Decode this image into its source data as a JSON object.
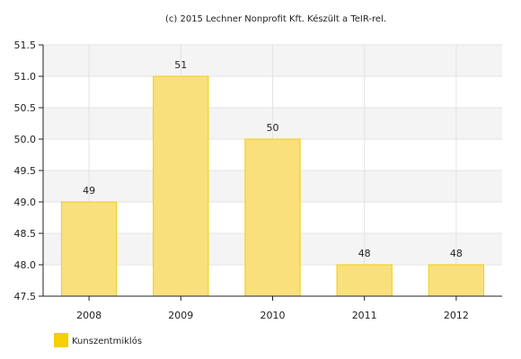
{
  "chart_data": {
    "type": "bar",
    "title": "(c) 2015 Lechner Nonprofit Kft. Készült a TeIR-rel.",
    "categories": [
      "2008",
      "2009",
      "2010",
      "2011",
      "2012"
    ],
    "series": [
      {
        "name": "Kunszentmiklós",
        "values": [
          49,
          51,
          50,
          48,
          48
        ],
        "labels": [
          "49",
          "51",
          "50",
          "48",
          "48"
        ],
        "color": "#f9e07c",
        "border_color": "#f2cc12",
        "legend_color": "#f5cf00"
      }
    ],
    "ylim": [
      47.5,
      51.5
    ],
    "yticks": [
      "47.5",
      "48.0",
      "48.5",
      "49.0",
      "49.5",
      "50.0",
      "50.5",
      "51.0",
      "51.5"
    ],
    "xlabel": "",
    "ylabel": "",
    "grid": true,
    "band_color": "#f4f4f4",
    "grid_color": "#e3e3e3",
    "axis_color": "#222222",
    "legend_position": "bottom-left"
  }
}
